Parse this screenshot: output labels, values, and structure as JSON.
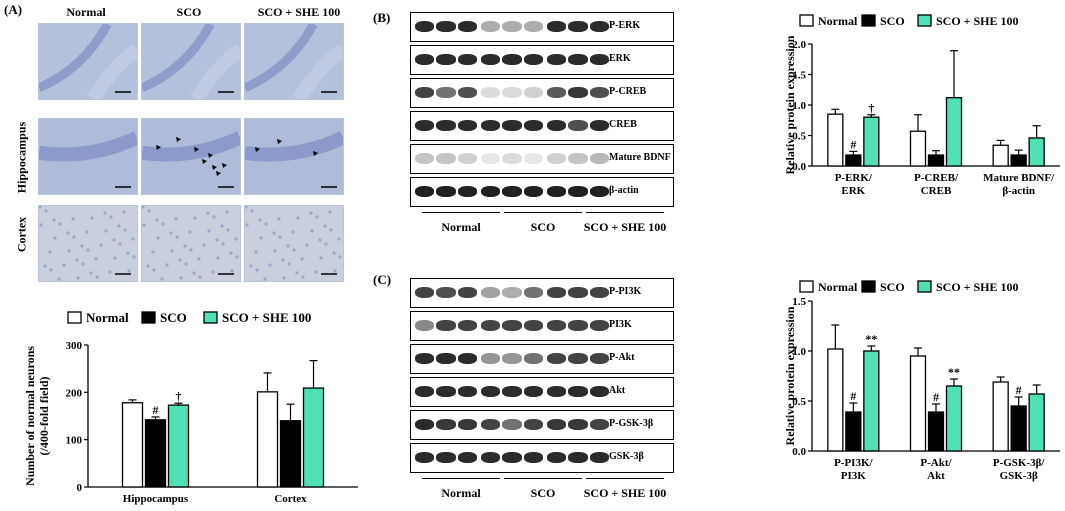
{
  "panelA": {
    "label": "(A)",
    "columns": [
      "Normal",
      "SCO",
      "SCO + SHE 100"
    ],
    "rows": [
      "Hippocampus",
      "Cortex"
    ],
    "chart_data": {
      "type": "bar",
      "categories": [
        "Hippocampus",
        "Cortex"
      ],
      "series": [
        {
          "name": "Normal",
          "values": [
            178,
            201
          ],
          "errors": [
            6,
            40
          ],
          "color": "#ffffff"
        },
        {
          "name": "SCO",
          "values": [
            142,
            140
          ],
          "errors": [
            6,
            35
          ],
          "color": "#000000"
        },
        {
          "name": "SCO + SHE 100",
          "values": [
            173,
            209
          ],
          "errors": [
            4,
            58
          ],
          "color": "#4fe0b6"
        }
      ],
      "annotations": [
        [
          "",
          "#",
          "†"
        ],
        [
          "",
          "",
          ""
        ]
      ],
      "ylabel": "Number of normal neurons (/400-fold field)",
      "ylim": [
        0,
        300
      ],
      "yticks": [
        "0",
        "100",
        "200",
        "300"
      ],
      "legend": "top"
    }
  },
  "panelB": {
    "label": "(B)",
    "blots": [
      "P-ERK",
      "ERK",
      "P-CREB",
      "CREB",
      "Mature BDNF",
      "β-actin"
    ],
    "groups": [
      "Normal",
      "SCO",
      "SCO + SHE 100"
    ],
    "chart_data": {
      "type": "bar",
      "categories": [
        "P-ERK/ ERK",
        "P-CREB/ CREB",
        "Mature BDNF/ β-actin"
      ],
      "category_lines": [
        [
          "P-ERK/",
          "ERK"
        ],
        [
          "P-CREB/",
          "CREB"
        ],
        [
          "Mature BDNF/",
          "β-actin"
        ]
      ],
      "series": [
        {
          "name": "Normal",
          "values": [
            0.85,
            0.57,
            0.34
          ],
          "errors": [
            0.08,
            0.27,
            0.08
          ],
          "color": "#ffffff"
        },
        {
          "name": "SCO",
          "values": [
            0.18,
            0.18,
            0.18
          ],
          "errors": [
            0.06,
            0.07,
            0.08
          ],
          "color": "#000000"
        },
        {
          "name": "SCO + SHE 100",
          "values": [
            0.8,
            1.12,
            0.46
          ],
          "errors": [
            0.04,
            0.77,
            0.2
          ],
          "color": "#4fe0b6"
        }
      ],
      "annotations": [
        [
          "",
          "#",
          "†"
        ],
        [
          "",
          "",
          ""
        ],
        [
          "",
          "",
          ""
        ]
      ],
      "ylabel": "Relative protein expression",
      "ylim": [
        0,
        2.0
      ],
      "yticks": [
        "0.0",
        "0.5",
        "1.0",
        "1.5",
        "2.0"
      ],
      "legend": "top"
    }
  },
  "panelC": {
    "label": "(C)",
    "blots": [
      "P-PI3K",
      "PI3K",
      "P-Akt",
      "Akt",
      "P-GSK-3β",
      "GSK-3β"
    ],
    "groups": [
      "Normal",
      "SCO",
      "SCO + SHE 100"
    ],
    "chart_data": {
      "type": "bar",
      "categories": [
        "P-PI3K/ PI3K",
        "P-Akt/ Akt",
        "P-GSK-3β/ GSK-3β"
      ],
      "category_lines": [
        [
          "P-PI3K/",
          "PI3K"
        ],
        [
          "P-Akt/",
          "Akt"
        ],
        [
          "P-GSK-3β/",
          "GSK-3β"
        ]
      ],
      "series": [
        {
          "name": "Normal",
          "values": [
            1.02,
            0.95,
            0.69
          ],
          "errors": [
            0.24,
            0.08,
            0.05
          ],
          "color": "#ffffff"
        },
        {
          "name": "SCO",
          "values": [
            0.39,
            0.39,
            0.45
          ],
          "errors": [
            0.09,
            0.08,
            0.09
          ],
          "color": "#000000"
        },
        {
          "name": "SCO + SHE 100",
          "values": [
            1.0,
            0.65,
            0.57
          ],
          "errors": [
            0.05,
            0.07,
            0.09
          ],
          "color": "#4fe0b6"
        }
      ],
      "annotations": [
        [
          "",
          "#",
          "**"
        ],
        [
          "",
          "#",
          "**"
        ],
        [
          "",
          "#",
          ""
        ]
      ],
      "ylabel": "Relative protein expression",
      "ylim": [
        0,
        1.5
      ],
      "yticks": [
        "0.0",
        "0.5",
        "1.0",
        "1.5"
      ],
      "legend": "top"
    }
  }
}
